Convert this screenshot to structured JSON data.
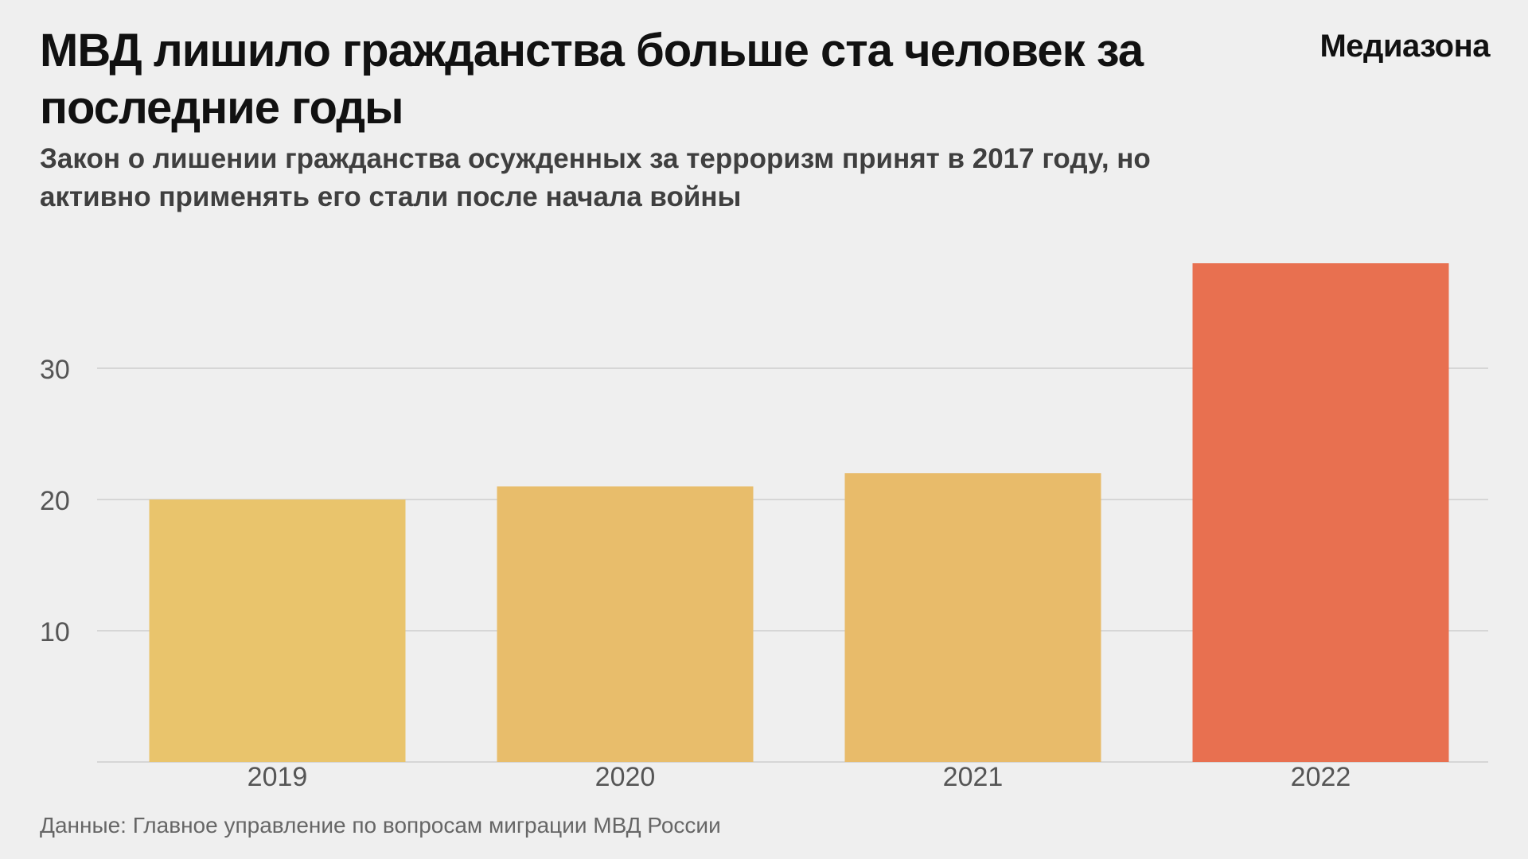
{
  "header": {
    "title": "МВД лишило гражданства больше ста человек за последние годы",
    "subtitle": "Закон о лишении гражданства осужденных за терроризм принят в 2017 году, но активно применять его стали после начала войны",
    "brand": "Медиазона"
  },
  "footer": {
    "source": "Данные: Главное управление по вопросам миграции МВД России"
  },
  "chart_data": {
    "type": "bar",
    "categories": [
      "2019",
      "2020",
      "2021",
      "2022"
    ],
    "values": [
      20,
      21,
      22,
      38
    ],
    "bar_colors": [
      "#e9c46c",
      "#e8bd6b",
      "#e8bb6a",
      "#e87050"
    ],
    "yticks": [
      10,
      20,
      30
    ],
    "ylim": [
      0,
      40
    ],
    "grid": true,
    "axis_color": "#d6d6d6",
    "tick_label_color": "#555555"
  }
}
